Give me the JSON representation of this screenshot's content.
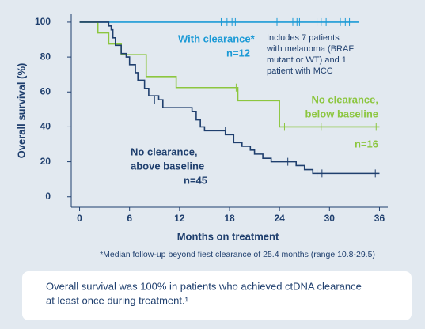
{
  "chart_data": {
    "type": "step",
    "x_label": "Months on treatment",
    "y_label": "Overall survival (%)",
    "xlim": [
      -1,
      37
    ],
    "ylim": [
      -6,
      104.5
    ],
    "xticks": [
      0,
      6,
      12,
      18,
      24,
      30,
      36
    ],
    "yticks": [
      0,
      20,
      40,
      60,
      80,
      100
    ],
    "series": [
      {
        "label_lines": [
          "With clearance*"
        ],
        "n_label": "n=12",
        "color": "#1b9ad6",
        "x": [
          0,
          33.5
        ],
        "values": [
          100,
          100
        ],
        "censored": {
          "x": [
            17,
            17.7,
            18.3,
            18.7,
            23.7,
            25.6,
            26.1,
            26.4,
            28.5,
            29,
            29.6,
            31.3,
            31.9,
            32.4
          ],
          "y": [
            100,
            100,
            100,
            100,
            100,
            100,
            100,
            100,
            100,
            100,
            100,
            100,
            100,
            100
          ]
        },
        "note_lines": [
          "Includes 7 patients",
          "with melanoma (BRAF",
          "mutant or WT) and 1",
          "patient with MCC"
        ]
      },
      {
        "label_lines": [
          "No clearance,",
          "below baseline"
        ],
        "n_label": "n=16",
        "color": "#8cc63f",
        "x": [
          0,
          2.2,
          3.5,
          5,
          8,
          11.6,
          19,
          24,
          36
        ],
        "values": [
          100,
          93.8,
          87.5,
          81.3,
          68.8,
          62.5,
          55,
          40,
          40
        ],
        "censored": {
          "x": [
            18.8,
            24.6,
            29,
            35.6
          ],
          "y": [
            62.5,
            40,
            40,
            40
          ]
        }
      },
      {
        "label_lines": [
          "No clearance,",
          "above baseline"
        ],
        "n_label": "n=45",
        "color": "#1f3f6e",
        "x": [
          0,
          3.5,
          3.8,
          4,
          4.3,
          5,
          5.6,
          6,
          6.7,
          7,
          7.8,
          8.3,
          9.5,
          10,
          13.5,
          14,
          14.5,
          15,
          17.5,
          18.5,
          19.5,
          20.5,
          21,
          22,
          23,
          26,
          27,
          28,
          36
        ],
        "values": [
          100,
          97.8,
          95.6,
          91,
          86.7,
          82,
          80,
          75.6,
          71,
          66.7,
          62,
          57.8,
          55.5,
          51,
          48.9,
          44,
          40,
          37.8,
          35.5,
          31,
          28.9,
          26.7,
          24.4,
          22,
          20,
          17.8,
          15.5,
          13.3,
          13.3
        ],
        "censored": {
          "x": [
            9,
            17.5,
            25,
            28.5,
            29.1,
            35.5
          ],
          "y": [
            55.5,
            37.8,
            20,
            13.3,
            13.3,
            13.3
          ]
        }
      }
    ],
    "footnote": "*Median follow-up beyond fiest clearance of 25.4 months (range 10.8-29.5)"
  },
  "summary": {
    "lines": [
      "Overall survival was 100% in patients who achieved ctDNA clearance",
      "at least once during treatment.¹"
    ]
  }
}
